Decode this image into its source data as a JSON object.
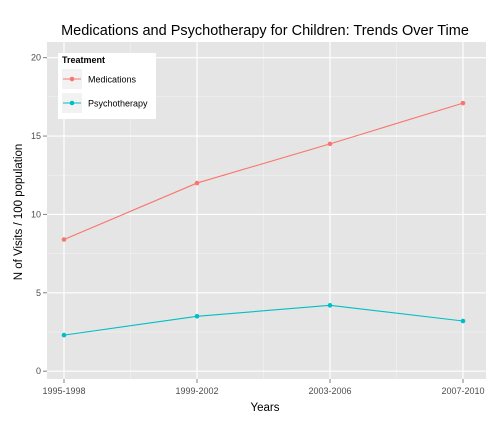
{
  "chart_data": {
    "type": "line",
    "title": "Medications and Psychotherapy for Children: Trends Over Time",
    "xlabel": "Years",
    "ylabel": "N of Visits / 100 population",
    "categories": [
      "1995-1998",
      "1999-2002",
      "2003-2006",
      "2007-2010"
    ],
    "ylim": [
      -0.5,
      21
    ],
    "yticks": [
      0,
      5,
      10,
      15,
      20
    ],
    "grid": true,
    "legend": {
      "title": "Treatment",
      "placement": "top-left"
    },
    "series": [
      {
        "name": "Medications",
        "color": "#F8766D",
        "values": [
          8.4,
          12.0,
          14.5,
          17.1
        ]
      },
      {
        "name": "Psychotherapy",
        "color": "#00BFC4",
        "values": [
          2.3,
          3.5,
          4.2,
          3.2
        ]
      }
    ]
  }
}
